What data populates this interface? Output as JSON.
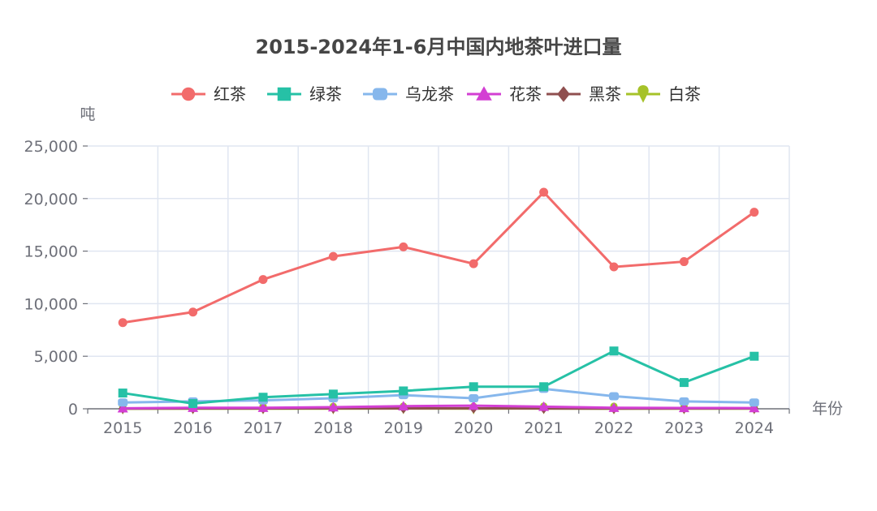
{
  "chart_data": {
    "type": "line",
    "title": "2015-2024年1-6月中国内地茶叶进口量",
    "xlabel": "年份",
    "ylabel": "吨",
    "categories": [
      "2015",
      "2016",
      "2017",
      "2018",
      "2019",
      "2020",
      "2021",
      "2022",
      "2023",
      "2024"
    ],
    "ylim": [
      0,
      25000
    ],
    "yticks": [
      "0",
      "5,000",
      "10,000",
      "15,000",
      "20,000",
      "25,000"
    ],
    "grid": true,
    "legend_position": "top-center",
    "series": [
      {
        "name": "红茶",
        "color": "#f26b6b",
        "marker": "circle",
        "values": [
          8200,
          9200,
          12300,
          14500,
          15400,
          13800,
          20600,
          13500,
          14000,
          18700
        ]
      },
      {
        "name": "绿茶",
        "color": "#26c1a6",
        "marker": "square",
        "values": [
          1500,
          500,
          1100,
          1400,
          1700,
          2100,
          2100,
          5500,
          2500,
          5000
        ]
      },
      {
        "name": "乌龙茶",
        "color": "#86b7ec",
        "marker": "roundRect",
        "values": [
          600,
          700,
          800,
          1000,
          1300,
          1000,
          1900,
          1200,
          700,
          600
        ]
      },
      {
        "name": "花茶",
        "color": "#d33fd3",
        "marker": "triangle",
        "values": [
          50,
          100,
          100,
          150,
          250,
          300,
          200,
          100,
          80,
          70
        ]
      },
      {
        "name": "黑茶",
        "color": "#8f4f4f",
        "marker": "diamond",
        "values": [
          20,
          30,
          30,
          40,
          40,
          50,
          30,
          20,
          30,
          30
        ]
      },
      {
        "name": "白茶",
        "color": "#a6c229",
        "marker": "pin",
        "values": [
          10,
          20,
          20,
          20,
          30,
          20,
          30,
          20,
          20,
          20
        ]
      }
    ]
  }
}
